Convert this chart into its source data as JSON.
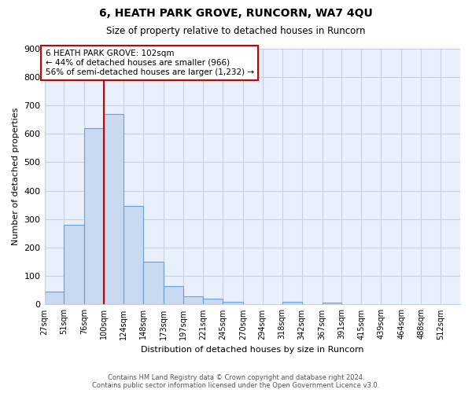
{
  "title": "6, HEATH PARK GROVE, RUNCORN, WA7 4QU",
  "subtitle": "Size of property relative to detached houses in Runcorn",
  "xlabel": "Distribution of detached houses by size in Runcorn",
  "ylabel": "Number of detached properties",
  "bin_labels": [
    "27sqm",
    "51sqm",
    "76sqm",
    "100sqm",
    "124sqm",
    "148sqm",
    "173sqm",
    "197sqm",
    "221sqm",
    "245sqm",
    "270sqm",
    "294sqm",
    "318sqm",
    "342sqm",
    "367sqm",
    "391sqm",
    "415sqm",
    "439sqm",
    "464sqm",
    "488sqm",
    "512sqm"
  ],
  "bar_values": [
    45,
    280,
    620,
    670,
    345,
    150,
    65,
    30,
    20,
    10,
    0,
    0,
    10,
    0,
    8,
    0,
    0,
    0,
    0,
    0,
    0
  ],
  "bar_color": "#c8d9f0",
  "bar_edge_color": "#6a9fd8",
  "property_line_x": 100,
  "property_line_color": "#cc0000",
  "annotation_text": "6 HEATH PARK GROVE: 102sqm\n← 44% of detached houses are smaller (966)\n56% of semi-detached houses are larger (1,232) →",
  "annotation_box_color": "#ffffff",
  "annotation_box_edge": "#cc0000",
  "ylim": [
    0,
    900
  ],
  "yticks": [
    0,
    100,
    200,
    300,
    400,
    500,
    600,
    700,
    800,
    900
  ],
  "plot_bg_color": "#e8f0fb",
  "footer": "Contains HM Land Registry data © Crown copyright and database right 2024.\nContains public sector information licensed under the Open Government Licence v3.0.",
  "background_color": "#ffffff",
  "grid_color": "#c8d0e0"
}
